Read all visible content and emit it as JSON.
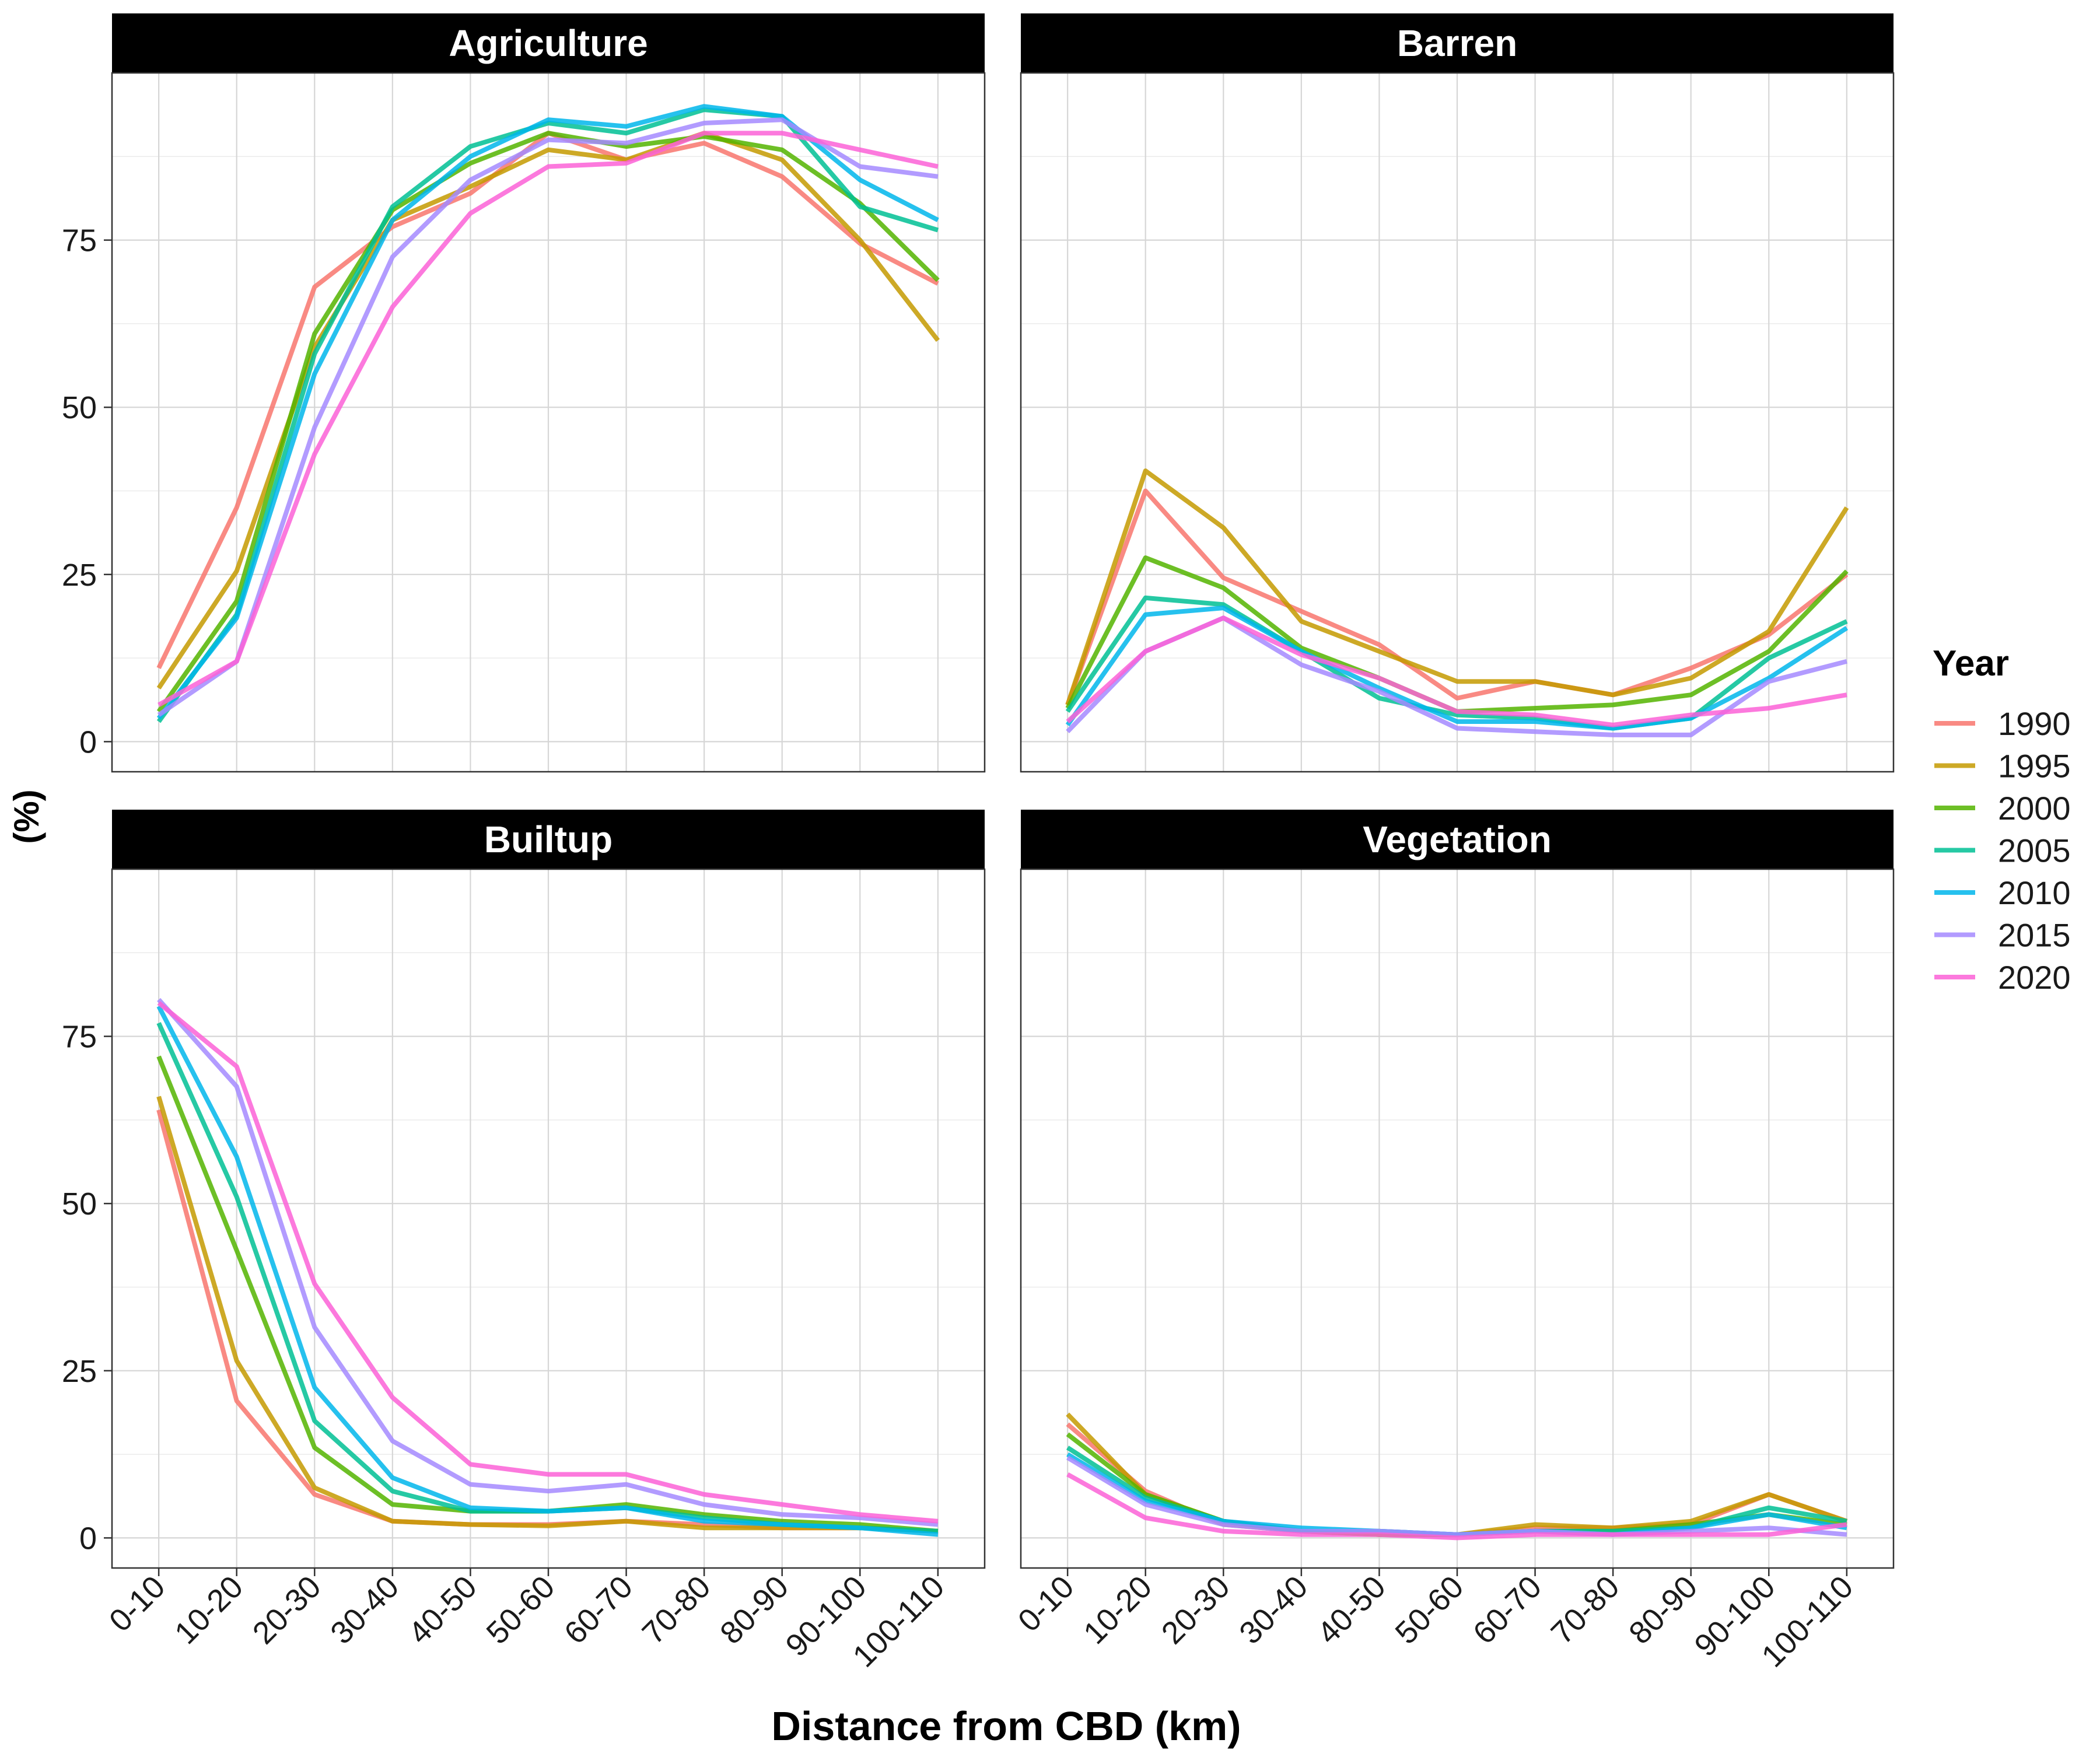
{
  "chart_data": {
    "type": "line",
    "xlabel": "Distance from CBD (km)",
    "ylabel": "(%)",
    "categories": [
      "0-10",
      "10-20",
      "20-30",
      "30-40",
      "40-50",
      "50-60",
      "60-70",
      "70-80",
      "80-90",
      "90-100",
      "100-110"
    ],
    "yticks": [
      0,
      25,
      50,
      75
    ],
    "ylim": [
      -4.5,
      100
    ],
    "grid": true,
    "legend": {
      "title": "Year",
      "position": "right",
      "entries": [
        {
          "name": "1990",
          "color": "#F8766D"
        },
        {
          "name": "1995",
          "color": "#C49A00"
        },
        {
          "name": "2000",
          "color": "#53B400"
        },
        {
          "name": "2005",
          "color": "#00C094"
        },
        {
          "name": "2010",
          "color": "#00B6EB"
        },
        {
          "name": "2015",
          "color": "#A58AFF"
        },
        {
          "name": "2020",
          "color": "#FB61D7"
        }
      ]
    },
    "panels": [
      {
        "title": "Agriculture",
        "series": [
          {
            "name": "1990",
            "values": [
              11,
              35,
              68,
              77,
              82,
              91,
              87,
              89.5,
              84.5,
              74.5,
              68.5
            ]
          },
          {
            "name": "1995",
            "values": [
              8,
              25.5,
              59,
              78,
              83,
              88.5,
              87,
              91,
              87,
              75,
              60
            ]
          },
          {
            "name": "2000",
            "values": [
              4.5,
              21,
              61,
              79.5,
              86.5,
              91,
              89,
              90.5,
              88.5,
              80.5,
              69
            ]
          },
          {
            "name": "2005",
            "values": [
              3,
              19,
              58,
              80,
              89,
              92.5,
              91,
              94.5,
              93.5,
              80,
              76.5
            ]
          },
          {
            "name": "2010",
            "values": [
              3.5,
              18.5,
              55,
              78,
              87.5,
              93,
              92,
              95,
              93.5,
              84,
              78
            ]
          },
          {
            "name": "2015",
            "values": [
              4,
              12,
              47,
              72.5,
              84,
              90,
              89.5,
              92.5,
              93,
              86,
              84.5
            ]
          },
          {
            "name": "2020",
            "values": [
              5.5,
              12,
              43,
              65,
              79,
              86,
              86.5,
              91,
              91,
              88.5,
              86
            ]
          }
        ]
      },
      {
        "title": "Barren",
        "series": [
          {
            "name": "1990",
            "values": [
              5.5,
              37.5,
              24.5,
              19.5,
              14.5,
              6.5,
              9,
              7,
              11,
              16,
              25
            ]
          },
          {
            "name": "1995",
            "values": [
              5.5,
              40.5,
              32,
              18,
              13.5,
              9,
              9,
              7,
              9.5,
              16.5,
              35
            ]
          },
          {
            "name": "2000",
            "values": [
              5,
              27.5,
              23,
              14,
              9.5,
              4.5,
              5,
              5.5,
              7,
              13.5,
              25.5
            ]
          },
          {
            "name": "2005",
            "values": [
              4.5,
              21.5,
              20.5,
              13.5,
              6.5,
              4,
              3.5,
              2,
              3.5,
              12.5,
              18
            ]
          },
          {
            "name": "2010",
            "values": [
              2.5,
              19,
              20,
              13.5,
              8,
              3,
              3,
              2,
              3.5,
              9.5,
              17
            ]
          },
          {
            "name": "2015",
            "values": [
              1.5,
              13.5,
              18.5,
              11.5,
              7.5,
              2,
              1.5,
              1,
              1,
              9,
              12
            ]
          },
          {
            "name": "2020",
            "values": [
              3,
              13.5,
              18.5,
              13,
              9.5,
              4.5,
              4,
              2.5,
              4,
              5,
              7
            ]
          }
        ]
      },
      {
        "title": "Builtup",
        "series": [
          {
            "name": "1990",
            "values": [
              64,
              20.5,
              6.5,
              2.5,
              2,
              2,
              2.5,
              2,
              1.5,
              1.5,
              1
            ]
          },
          {
            "name": "1995",
            "values": [
              66,
              26.5,
              7.5,
              2.5,
              2,
              1.8,
              2.5,
              1.5,
              1.5,
              1.5,
              1
            ]
          },
          {
            "name": "2000",
            "values": [
              72,
              43,
              13.5,
              5,
              4,
              4,
              5,
              3.5,
              2.5,
              2,
              1
            ]
          },
          {
            "name": "2005",
            "values": [
              77,
              51,
              17.5,
              7,
              4,
              4,
              4.5,
              3,
              2,
              1.5,
              1
            ]
          },
          {
            "name": "2010",
            "values": [
              79.5,
              57,
              22.5,
              9,
              4.5,
              4,
              4.5,
              2.5,
              2,
              1.5,
              0.5
            ]
          },
          {
            "name": "2015",
            "values": [
              80.5,
              67.5,
              31.5,
              14.5,
              8,
              7,
              8,
              5,
              3.5,
              3,
              2
            ]
          },
          {
            "name": "2020",
            "values": [
              80,
              70.5,
              38,
              21,
              11,
              9.5,
              9.5,
              6.5,
              5,
              3.5,
              2.5
            ]
          }
        ]
      },
      {
        "title": "Vegetation",
        "series": [
          {
            "name": "1990",
            "values": [
              17,
              7,
              2,
              1,
              0.5,
              0.5,
              1.5,
              1.5,
              2,
              6.5,
              2.5
            ]
          },
          {
            "name": "1995",
            "values": [
              18.5,
              6.5,
              2.5,
              1,
              0.5,
              0.5,
              2,
              1.5,
              2.5,
              6.5,
              2.5
            ]
          },
          {
            "name": "2000",
            "values": [
              15.5,
              6.5,
              2.5,
              1,
              0.5,
              0.5,
              1,
              1,
              2,
              3.5,
              2
            ]
          },
          {
            "name": "2005",
            "values": [
              13.5,
              6,
              2.5,
              1,
              1,
              0.5,
              1,
              1,
              1.5,
              4.5,
              2.5
            ]
          },
          {
            "name": "2010",
            "values": [
              12.5,
              5.5,
              2.5,
              1.5,
              1,
              0.5,
              1,
              0.5,
              1.5,
              3.5,
              1.5
            ]
          },
          {
            "name": "2015",
            "values": [
              12,
              5,
              2,
              1,
              1,
              0.5,
              1,
              0.5,
              1,
              1.5,
              0.5
            ]
          },
          {
            "name": "2020",
            "values": [
              9.5,
              3,
              1,
              0.5,
              0.5,
              0,
              0.5,
              0.5,
              0.5,
              0.5,
              2
            ]
          }
        ]
      }
    ]
  }
}
